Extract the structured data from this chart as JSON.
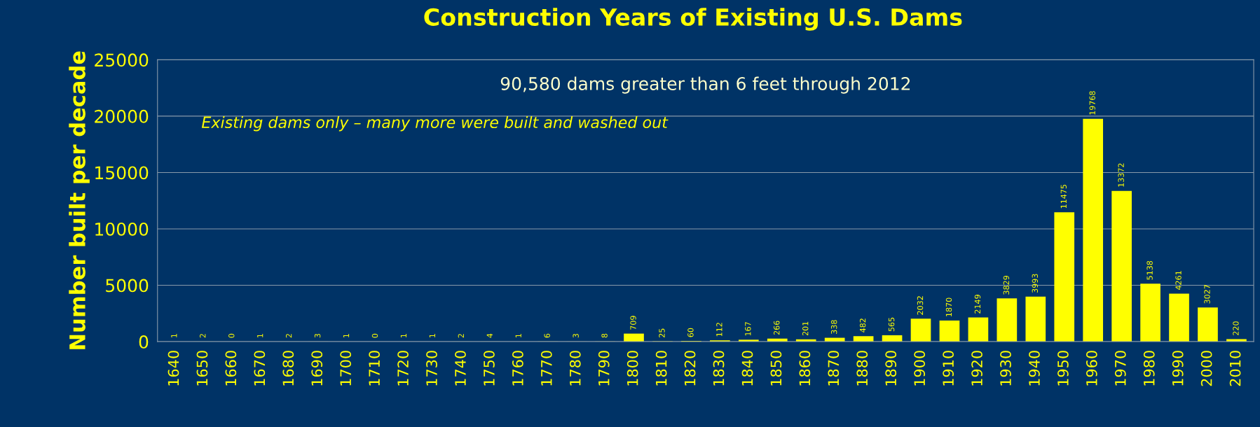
{
  "chart_data": {
    "type": "bar",
    "title": "Construction Years of Existing U.S. Dams",
    "subtitle": "90,580 dams greater than 6 feet through 2012",
    "ylabel": "Number built per decade",
    "annotations": [
      "Existing dams only – many more were built and washed out"
    ],
    "categories": [
      "1640",
      "1650",
      "1660",
      "1670",
      "1680",
      "1690",
      "1700",
      "1710",
      "1720",
      "1730",
      "1740",
      "1750",
      "1760",
      "1770",
      "1780",
      "1790",
      "1800",
      "1810",
      "1820",
      "1830",
      "1840",
      "1850",
      "1860",
      "1870",
      "1880",
      "1890",
      "1900",
      "1910",
      "1920",
      "1930",
      "1940",
      "1950",
      "1960",
      "1970",
      "1980",
      "1990",
      "2000",
      "2010"
    ],
    "values": [
      1,
      2,
      0,
      1,
      2,
      3,
      1,
      0,
      1,
      1,
      2,
      4,
      1,
      6,
      3,
      8,
      709,
      25,
      60,
      112,
      167,
      266,
      201,
      338,
      482,
      565,
      2032,
      1870,
      2149,
      3829,
      3993,
      11475,
      19768,
      13372,
      5138,
      4261,
      3027,
      220
    ],
    "color": "#ffff00",
    "ylim": [
      0,
      25000
    ],
    "yticks": [
      0,
      5000,
      10000,
      15000,
      20000,
      25000
    ],
    "grid": "y",
    "data_labels": true,
    "legend": false
  }
}
